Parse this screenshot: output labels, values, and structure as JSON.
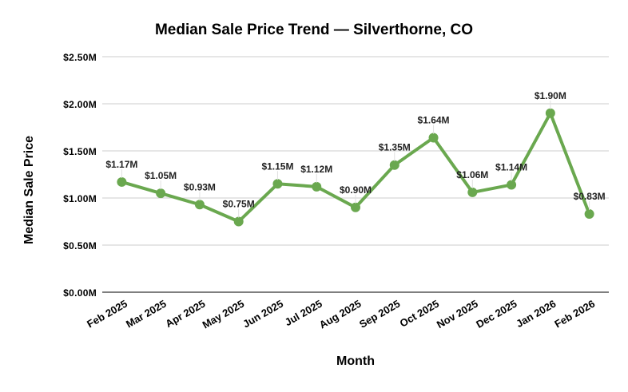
{
  "chart_data": {
    "type": "line",
    "title": "Median Sale Price Trend — Silverthorne, CO",
    "xlabel": "Month",
    "ylabel": "Median Sale Price",
    "categories": [
      "Feb 2025",
      "Mar 2025",
      "Apr 2025",
      "May 2025",
      "Jun 2025",
      "Jul 2025",
      "Aug 2025",
      "Sep 2025",
      "Oct 2025",
      "Nov 2025",
      "Dec 2025",
      "Jan 2026",
      "Feb 2026"
    ],
    "values": [
      1.17,
      1.05,
      0.93,
      0.75,
      1.15,
      1.12,
      0.9,
      1.35,
      1.64,
      1.06,
      1.14,
      1.9,
      0.83
    ],
    "data_labels": [
      "$1.17M",
      "$1.05M",
      "$0.93M",
      "$0.75M",
      "$1.15M",
      "$1.12M",
      "$0.90M",
      "$1.35M",
      "$1.64M",
      "$1.06M",
      "$1.14M",
      "$1.90M",
      "$0.83M"
    ],
    "y_unit": "$M",
    "ylim": [
      0,
      2.5
    ],
    "yticks": [
      0,
      0.5,
      1.0,
      1.5,
      2.0,
      2.5
    ],
    "ytick_labels": [
      "$0.00M",
      "$0.50M",
      "$1.00M",
      "$1.50M",
      "$2.00M",
      "$2.50M"
    ],
    "grid": true,
    "legend": "none",
    "colors": {
      "series": "#6aa84f",
      "grid": "#cccccc",
      "axis": "#333333"
    }
  }
}
